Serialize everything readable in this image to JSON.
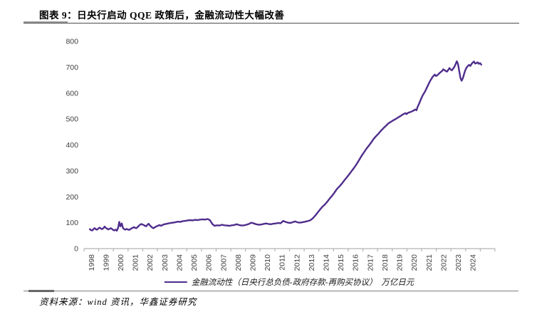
{
  "header": {
    "title": "图表 9：日央行启动 QQE 政策后，金融流动性大幅改善"
  },
  "footer": {
    "source": "资料来源：wind 资讯，华鑫证券研究"
  },
  "chart_data": {
    "type": "line",
    "title": "日央行启动 QQE 政策后，金融流动性大幅改善",
    "legend": "金融流动性（日央行总负债-政府存款-再购买协议）　万亿日元",
    "unit": "万亿日元",
    "legend_position": "bottom",
    "grid": false,
    "line_color": "#4F2D8C",
    "axis_color": "#b3b3b3",
    "tick_label_color": "#404040",
    "ylim": [
      0,
      800
    ],
    "y_tick_labels": [
      "0",
      "100",
      "200",
      "300",
      "400",
      "500",
      "600",
      "700",
      "800"
    ],
    "x_tick_labels": [
      "1998",
      "1999",
      "2000",
      "2001",
      "2002",
      "2003",
      "2004",
      "2005",
      "2006",
      "2007",
      "2008",
      "2009",
      "2010",
      "2011",
      "2012",
      "2013",
      "2014",
      "2015",
      "2016",
      "2017",
      "2018",
      "2019",
      "2020",
      "2021",
      "2022",
      "2023",
      "2024"
    ],
    "points": [
      [
        1998.0,
        75
      ],
      [
        1998.08,
        71
      ],
      [
        1998.17,
        70
      ],
      [
        1998.25,
        76
      ],
      [
        1998.33,
        79
      ],
      [
        1998.42,
        74
      ],
      [
        1998.5,
        73
      ],
      [
        1998.58,
        78
      ],
      [
        1998.67,
        81
      ],
      [
        1998.75,
        77
      ],
      [
        1998.83,
        75
      ],
      [
        1998.92,
        79
      ],
      [
        1999.0,
        85
      ],
      [
        1999.08,
        80
      ],
      [
        1999.17,
        77
      ],
      [
        1999.25,
        74
      ],
      [
        1999.33,
        76
      ],
      [
        1999.42,
        79
      ],
      [
        1999.5,
        76
      ],
      [
        1999.58,
        72
      ],
      [
        1999.67,
        70
      ],
      [
        1999.75,
        73
      ],
      [
        1999.83,
        69
      ],
      [
        1999.92,
        80
      ],
      [
        2000.0,
        103
      ],
      [
        2000.08,
        86
      ],
      [
        2000.17,
        97
      ],
      [
        2000.25,
        80
      ],
      [
        2000.33,
        75
      ],
      [
        2000.42,
        73
      ],
      [
        2000.5,
        76
      ],
      [
        2000.58,
        74
      ],
      [
        2000.67,
        72
      ],
      [
        2000.75,
        75
      ],
      [
        2000.83,
        78
      ],
      [
        2000.92,
        80
      ],
      [
        2001.0,
        83
      ],
      [
        2001.08,
        80
      ],
      [
        2001.17,
        79
      ],
      [
        2001.25,
        83
      ],
      [
        2001.33,
        88
      ],
      [
        2001.42,
        92
      ],
      [
        2001.5,
        95
      ],
      [
        2001.58,
        93
      ],
      [
        2001.67,
        91
      ],
      [
        2001.75,
        88
      ],
      [
        2001.83,
        86
      ],
      [
        2001.92,
        92
      ],
      [
        2002.0,
        96
      ],
      [
        2002.08,
        90
      ],
      [
        2002.17,
        85
      ],
      [
        2002.25,
        81
      ],
      [
        2002.33,
        79
      ],
      [
        2002.42,
        82
      ],
      [
        2002.5,
        85
      ],
      [
        2002.58,
        87
      ],
      [
        2002.67,
        89
      ],
      [
        2002.75,
        91
      ],
      [
        2002.83,
        88
      ],
      [
        2002.92,
        90
      ],
      [
        2003.0,
        93
      ],
      [
        2003.17,
        95
      ],
      [
        2003.33,
        97
      ],
      [
        2003.5,
        99
      ],
      [
        2003.67,
        100
      ],
      [
        2003.83,
        102
      ],
      [
        2004.0,
        104
      ],
      [
        2004.17,
        103
      ],
      [
        2004.33,
        106
      ],
      [
        2004.5,
        107
      ],
      [
        2004.67,
        109
      ],
      [
        2004.83,
        110
      ],
      [
        2005.0,
        109
      ],
      [
        2005.17,
        111
      ],
      [
        2005.33,
        110
      ],
      [
        2005.5,
        112
      ],
      [
        2005.67,
        113
      ],
      [
        2005.83,
        112
      ],
      [
        2006.0,
        114
      ],
      [
        2006.08,
        113
      ],
      [
        2006.17,
        110
      ],
      [
        2006.25,
        103
      ],
      [
        2006.33,
        96
      ],
      [
        2006.42,
        91
      ],
      [
        2006.5,
        88
      ],
      [
        2006.58,
        89
      ],
      [
        2006.67,
        90
      ],
      [
        2006.83,
        89
      ],
      [
        2007.0,
        92
      ],
      [
        2007.17,
        90
      ],
      [
        2007.33,
        89
      ],
      [
        2007.5,
        88
      ],
      [
        2007.67,
        90
      ],
      [
        2007.83,
        91
      ],
      [
        2008.0,
        94
      ],
      [
        2008.17,
        91
      ],
      [
        2008.33,
        89
      ],
      [
        2008.5,
        90
      ],
      [
        2008.67,
        92
      ],
      [
        2008.83,
        95
      ],
      [
        2009.0,
        100
      ],
      [
        2009.17,
        97
      ],
      [
        2009.33,
        94
      ],
      [
        2009.5,
        92
      ],
      [
        2009.67,
        93
      ],
      [
        2009.83,
        95
      ],
      [
        2010.0,
        97
      ],
      [
        2010.17,
        95
      ],
      [
        2010.33,
        94
      ],
      [
        2010.5,
        96
      ],
      [
        2010.67,
        97
      ],
      [
        2010.83,
        99
      ],
      [
        2011.0,
        98
      ],
      [
        2011.17,
        107
      ],
      [
        2011.33,
        103
      ],
      [
        2011.5,
        100
      ],
      [
        2011.67,
        99
      ],
      [
        2011.83,
        102
      ],
      [
        2012.0,
        105
      ],
      [
        2012.17,
        101
      ],
      [
        2012.33,
        100
      ],
      [
        2012.5,
        102
      ],
      [
        2012.67,
        104
      ],
      [
        2012.83,
        106
      ],
      [
        2013.0,
        109
      ],
      [
        2013.17,
        116
      ],
      [
        2013.33,
        126
      ],
      [
        2013.5,
        138
      ],
      [
        2013.67,
        150
      ],
      [
        2013.83,
        161
      ],
      [
        2014.0,
        170
      ],
      [
        2014.17,
        181
      ],
      [
        2014.33,
        193
      ],
      [
        2014.5,
        204
      ],
      [
        2014.67,
        217
      ],
      [
        2014.83,
        230
      ],
      [
        2015.0,
        240
      ],
      [
        2015.17,
        251
      ],
      [
        2015.33,
        263
      ],
      [
        2015.5,
        275
      ],
      [
        2015.67,
        287
      ],
      [
        2015.83,
        299
      ],
      [
        2016.0,
        312
      ],
      [
        2016.17,
        326
      ],
      [
        2016.33,
        341
      ],
      [
        2016.5,
        357
      ],
      [
        2016.67,
        371
      ],
      [
        2016.83,
        385
      ],
      [
        2017.0,
        397
      ],
      [
        2017.17,
        410
      ],
      [
        2017.33,
        423
      ],
      [
        2017.5,
        434
      ],
      [
        2017.67,
        444
      ],
      [
        2017.83,
        455
      ],
      [
        2018.0,
        465
      ],
      [
        2018.17,
        474
      ],
      [
        2018.33,
        483
      ],
      [
        2018.5,
        489
      ],
      [
        2018.67,
        495
      ],
      [
        2018.83,
        500
      ],
      [
        2019.0,
        506
      ],
      [
        2019.17,
        512
      ],
      [
        2019.33,
        518
      ],
      [
        2019.5,
        523
      ],
      [
        2019.58,
        519
      ],
      [
        2019.67,
        524
      ],
      [
        2019.83,
        527
      ],
      [
        2020.0,
        531
      ],
      [
        2020.17,
        537
      ],
      [
        2020.25,
        534
      ],
      [
        2020.33,
        547
      ],
      [
        2020.42,
        558
      ],
      [
        2020.5,
        569
      ],
      [
        2020.58,
        580
      ],
      [
        2020.67,
        591
      ],
      [
        2020.83,
        606
      ],
      [
        2021.0,
        626
      ],
      [
        2021.17,
        646
      ],
      [
        2021.33,
        661
      ],
      [
        2021.5,
        672
      ],
      [
        2021.58,
        666
      ],
      [
        2021.67,
        669
      ],
      [
        2021.83,
        678
      ],
      [
        2022.0,
        686
      ],
      [
        2022.08,
        692
      ],
      [
        2022.17,
        688
      ],
      [
        2022.33,
        683
      ],
      [
        2022.42,
        690
      ],
      [
        2022.5,
        697
      ],
      [
        2022.58,
        691
      ],
      [
        2022.67,
        688
      ],
      [
        2022.83,
        701
      ],
      [
        2022.92,
        712
      ],
      [
        2023.0,
        723
      ],
      [
        2023.08,
        712
      ],
      [
        2023.17,
        684
      ],
      [
        2023.25,
        658
      ],
      [
        2023.33,
        648
      ],
      [
        2023.42,
        659
      ],
      [
        2023.5,
        675
      ],
      [
        2023.58,
        689
      ],
      [
        2023.67,
        699
      ],
      [
        2023.75,
        705
      ],
      [
        2023.83,
        709
      ],
      [
        2023.92,
        705
      ],
      [
        2024.0,
        712
      ],
      [
        2024.08,
        718
      ],
      [
        2024.17,
        722
      ],
      [
        2024.25,
        714
      ],
      [
        2024.33,
        716
      ],
      [
        2024.42,
        719
      ],
      [
        2024.5,
        713
      ],
      [
        2024.58,
        716
      ],
      [
        2024.67,
        710
      ]
    ]
  }
}
